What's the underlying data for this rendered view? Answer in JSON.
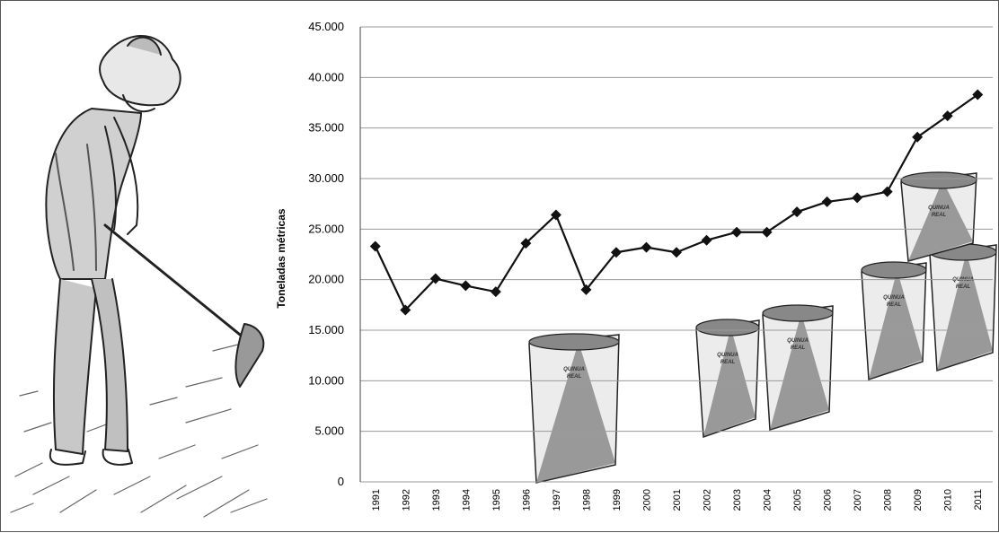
{
  "chart_data": {
    "type": "line",
    "title": "",
    "xlabel": "",
    "ylabel": "Toneladas métricas",
    "ylim": [
      0,
      45000
    ],
    "y_ticks": [
      0,
      5000,
      10000,
      15000,
      20000,
      25000,
      30000,
      35000,
      40000,
      45000
    ],
    "y_tick_labels": [
      "0",
      "5.000",
      "10.000",
      "15.000",
      "20.000",
      "25.000",
      "30.000",
      "35.000",
      "40.000",
      "45.000"
    ],
    "grid": true,
    "marker": "diamond",
    "line_color": "#111111",
    "x": [
      "1991",
      "1992",
      "1993",
      "1994",
      "1995",
      "1996",
      "1997",
      "1998",
      "1999",
      "2000",
      "2001",
      "2002",
      "2003",
      "2004",
      "2005",
      "2006",
      "2007",
      "2008",
      "2009",
      "2010",
      "2011"
    ],
    "values": [
      23300,
      17000,
      20100,
      19400,
      18800,
      23600,
      26400,
      19000,
      22700,
      23200,
      22700,
      23900,
      24700,
      24700,
      26700,
      27700,
      28100,
      28700,
      34100,
      36200,
      38300
    ]
  },
  "illustration": {
    "bag_label_lines": [
      "QUINUA",
      "REAL"
    ]
  }
}
